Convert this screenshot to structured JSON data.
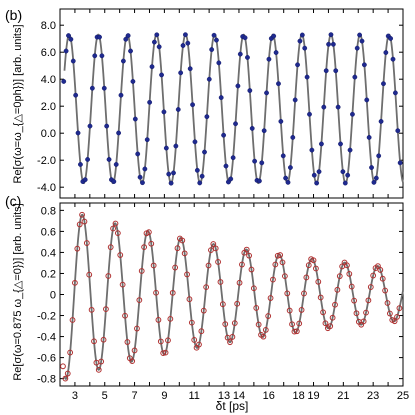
{
  "chart_data": [
    {
      "panel_label": "(b)",
      "type": "scatter",
      "ylabel": "Re[σ(ω=ω_{△=0ph})] [arb. units]",
      "ylim": [
        -4.8,
        9.2
      ],
      "xlim": [
        2.0,
        25.0
      ],
      "yticks": [
        "-4.0",
        "-2.0",
        "0.0",
        "2.0",
        "4.0",
        "6.0",
        "8.0"
      ],
      "ytick_values": [
        -4,
        -2,
        0,
        2,
        4,
        6,
        8
      ],
      "grid": false,
      "legend": "none",
      "series": [
        {
          "kind": "fit",
          "color": "#6e6e6e",
          "offset": 1.8,
          "amplitude": 5.5,
          "damping": 0.0,
          "period": 1.95,
          "phase_x": 2.62
        },
        {
          "kind": "data",
          "marker": "filled-circle",
          "color": "#1f2a8f",
          "sample_step": 0.16,
          "x_start": 2.25,
          "x_end": 24.9
        }
      ]
    },
    {
      "panel_label": "(c)",
      "type": "scatter",
      "ylabel": "Re[σ(ω=0.875 ω_{△=0})] [arb. units]",
      "xlabel": "δt [ps]",
      "ylim": [
        -0.87,
        0.87
      ],
      "xlim": [
        2.0,
        25.0
      ],
      "yticks": [
        "-0.8",
        "-0.6",
        "-0.4",
        "-0.2",
        "0",
        "0.2",
        "0.4",
        "0.6",
        "0.8"
      ],
      "ytick_values": [
        -0.8,
        -0.6,
        -0.4,
        -0.2,
        0,
        0.2,
        0.4,
        0.6,
        0.8
      ],
      "xticks": [
        "3",
        "5",
        "7",
        "9",
        "11",
        "13",
        "14",
        "16",
        "18",
        "19",
        "21",
        "23",
        "25"
      ],
      "xtick_values": [
        3,
        5,
        7,
        9,
        11,
        13,
        14,
        16,
        18,
        19,
        21,
        23,
        25
      ],
      "grid": false,
      "legend": "none",
      "series": [
        {
          "kind": "fit",
          "color": "#6e6e6e",
          "offset": 0.0,
          "amplitude": 0.82,
          "damping": 0.052,
          "period": 2.2,
          "phase_x": 3.5
        },
        {
          "kind": "data",
          "marker": "open-circle",
          "color": "#b03030",
          "sample_step": 0.16,
          "x_start": 2.2,
          "x_end": 24.9
        }
      ]
    }
  ]
}
